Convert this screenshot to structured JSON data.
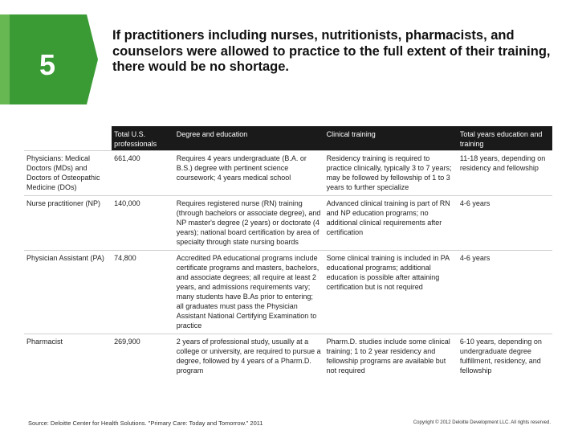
{
  "badge": {
    "number": "5",
    "color": "#3a9b35",
    "light_color": "#8ccf6a"
  },
  "headline": "If practitioners including nurses, nutritionists, pharmacists, and counselors were allowed to practice to the full extent of their training, there would be no shortage.",
  "table": {
    "headers": [
      "",
      "Total U.S. professionals",
      "Degree and education",
      "Clinical training",
      "Total years education and training"
    ],
    "rows": [
      [
        "Physicians: Medical Doctors (MDs) and Doctors of Osteopathic Medicine (DOs)",
        "661,400",
        "Requires 4 years undergraduate (B.A. or B.S.) degree with pertinent science coursework; 4 years medical school",
        "Residency training is required to practice clinically, typically 3 to 7 years; may be followed by fellowship of 1 to 3 years to further specialize",
        "11-18 years, depending on residency and fellowship"
      ],
      [
        "Nurse practitioner (NP)",
        "140,000",
        "Requires registered nurse (RN) training (through bachelors or associate degree), and NP master's degree (2 years) or doctorate (4 years); national board certification by area of specialty through state nursing boards",
        "Advanced clinical training is part of RN and NP education programs; no additional clinical requirements after certification",
        "4-6 years"
      ],
      [
        "Physician Assistant (PA)",
        "74,800",
        "Accredited PA educational programs include certificate programs and masters, bachelors, and associate degrees; all require at least 2 years, and admissions requirements vary; many students have B.As prior to entering; all graduates must pass the Physician Assistant National Certifying Examination to practice",
        "Some clinical training is included in PA educational programs; additional education is possible after attaining certification but is not required",
        "4-6 years"
      ],
      [
        "Pharmacist",
        "269,900",
        "2 years of professional study, usually at a college or university, are required to pursue a degree, followed by 4 years of a Pharm.D. program",
        "Pharm.D. studies include some clinical training; 1 to 2 year residency and fellowship programs are available but not required",
        "6-10 years, depending on undergraduate degree fulfillment, residency, and fellowship"
      ]
    ]
  },
  "footer": {
    "source": "Source: Deloitte Center for Health Solutions. \"Primary Care: Today and Tomorrow.\" 2011",
    "copyright": "Copyright © 2012 Deloitte Development LLC. All rights reserved."
  }
}
